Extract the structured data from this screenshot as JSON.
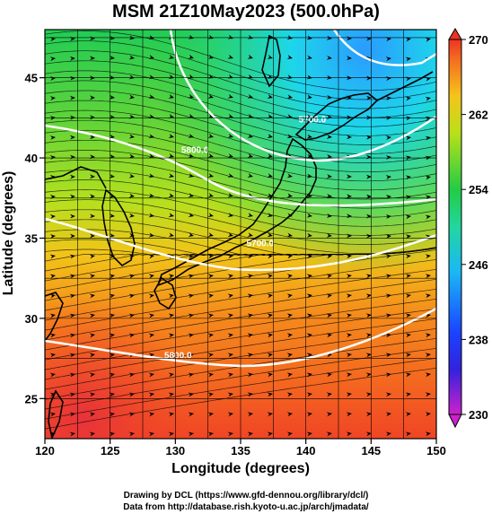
{
  "title": "MSM 21Z10May2023 (500.0hPa)",
  "map": {
    "xlabel": "Longitude (degrees)",
    "ylabel": "Latitude  (degrees)",
    "lon_range": [
      120,
      150
    ],
    "lat_range": [
      22.5,
      48
    ],
    "lon_ticks": [
      "120",
      "125",
      "130",
      "135",
      "140",
      "145",
      "150"
    ],
    "lat_ticks": [
      "25",
      "30",
      "35",
      "40",
      "45"
    ]
  },
  "colorbar": {
    "ticks": [
      "230",
      "238",
      "246",
      "254",
      "262",
      "270"
    ],
    "range": [
      230,
      270
    ]
  },
  "contours": [
    {
      "label": "5700.0",
      "lon": 140.5,
      "lat": 42.2
    },
    {
      "label": "5800.0",
      "lon": 131.5,
      "lat": 40.3
    },
    {
      "label": "5700.0",
      "lon": 136.5,
      "lat": 34.5
    },
    {
      "label": "5800.0",
      "lon": 130.2,
      "lat": 27.5
    }
  ],
  "credits": {
    "line1": "Drawing by DCL (https://www.gfd-dennou.org/library/dcl/)",
    "line2": "Data from http://database.rish.kyoto-u.ac.jp/arch/jmadata/"
  }
}
